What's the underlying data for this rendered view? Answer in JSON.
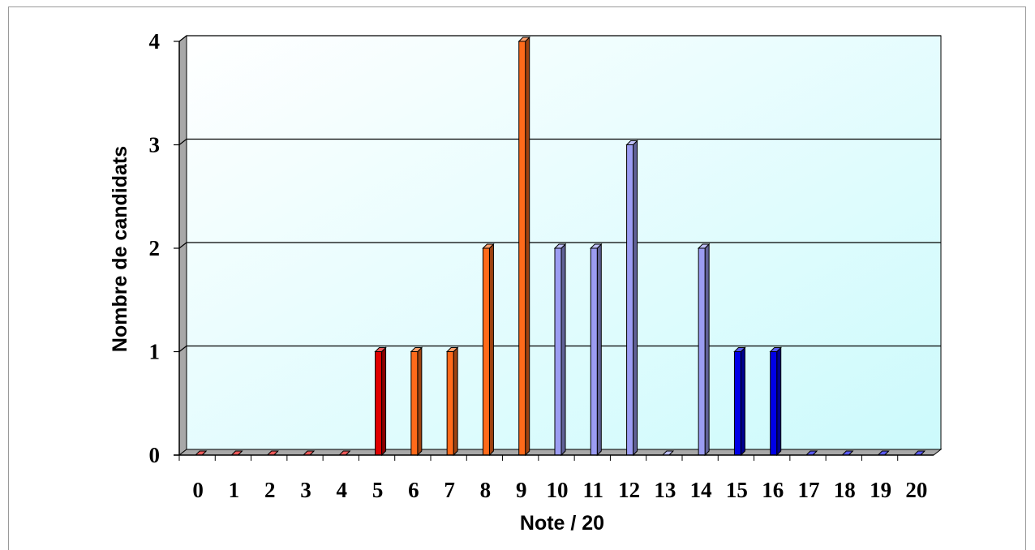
{
  "chart_data": {
    "type": "bar",
    "title": "",
    "xlabel": "Note / 20",
    "ylabel": "Nombre de candidats",
    "ylim": [
      0,
      4
    ],
    "y_ticks": [
      "0",
      "1",
      "2",
      "3",
      "4"
    ],
    "grid": true,
    "legend": "none",
    "categories": [
      "0",
      "1",
      "2",
      "3",
      "4",
      "5",
      "6",
      "7",
      "8",
      "9",
      "10",
      "11",
      "12",
      "13",
      "14",
      "15",
      "16",
      "17",
      "18",
      "19",
      "20"
    ],
    "values": [
      0,
      0,
      0,
      0,
      0,
      1,
      1,
      1,
      2,
      4,
      2,
      2,
      3,
      0,
      2,
      1,
      1,
      0,
      0,
      0,
      0
    ],
    "bar_colors": [
      "#e00000",
      "#e00000",
      "#e00000",
      "#e00000",
      "#e00000",
      "#e00000",
      "#ff6a1a",
      "#ff6a1a",
      "#ff6a1a",
      "#ff6a1a",
      "#9b9cf2",
      "#9b9cf2",
      "#9b9cf2",
      "#9b9cf2",
      "#9b9cf2",
      "#0000e6",
      "#0000e6",
      "#0000e6",
      "#0000e6",
      "#0000e6",
      "#0000e6"
    ],
    "plot_background": [
      "#ffffff",
      "#ccfafc"
    ]
  }
}
